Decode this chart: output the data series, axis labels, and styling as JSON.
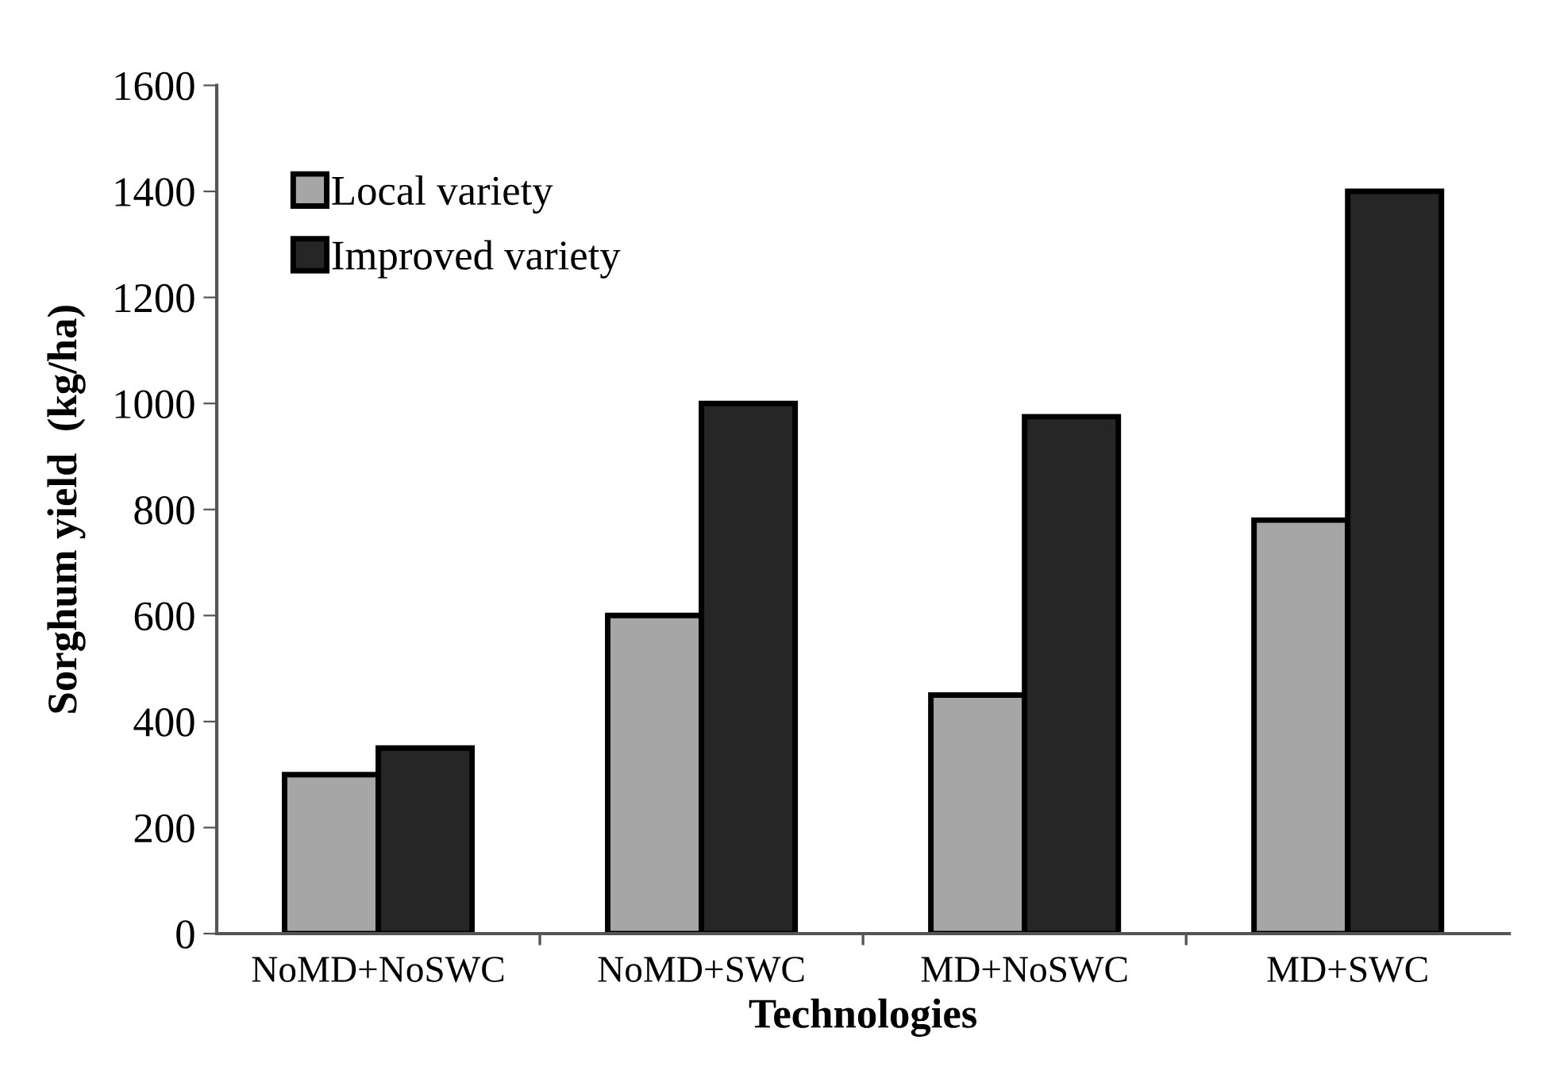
{
  "chart_data": {
    "type": "bar",
    "xlabel": "Technologies",
    "ylabel": "Sorghum yield  (kg/ha)",
    "categories": [
      "NoMD+NoSWC",
      "NoMD+SWC",
      "MD+NoSWC",
      "MD+SWC"
    ],
    "series": [
      {
        "name": "Local variety",
        "color": "#a6a6a6",
        "values": [
          300,
          600,
          450,
          780
        ]
      },
      {
        "name": "Improved variety",
        "color": "#262626",
        "values": [
          350,
          1000,
          975,
          1400
        ]
      }
    ],
    "ylim": [
      0,
      1600
    ],
    "yticks": [
      0,
      200,
      400,
      600,
      800,
      1000,
      1200,
      1400,
      1600
    ],
    "grid": false,
    "legend": "top left"
  }
}
